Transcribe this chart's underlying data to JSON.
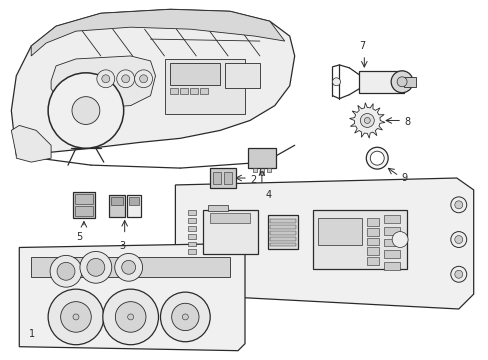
{
  "background_color": "#ffffff",
  "line_color": "#2a2a2a",
  "gray_fill": "#cccccc",
  "light_fill": "#eeeeee",
  "dot_fill": "#aaaaaa",
  "figsize": [
    4.89,
    3.6
  ],
  "dpi": 100
}
